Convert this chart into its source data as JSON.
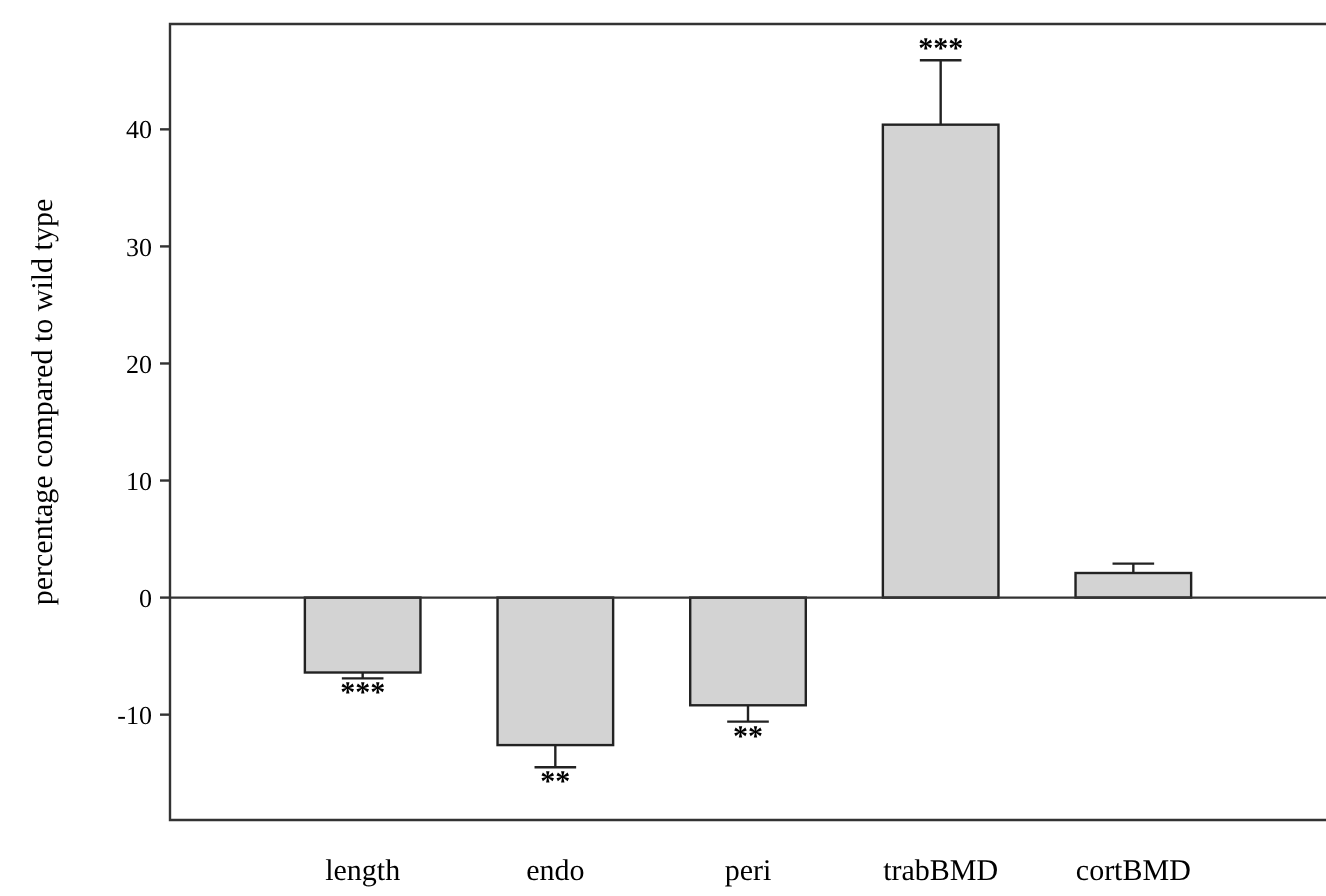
{
  "chart_data": {
    "type": "bar",
    "ylabel": "percentage compared to wild type",
    "categories": [
      "length",
      "endo",
      "peri",
      "trabBMD",
      "cortBMD"
    ],
    "values": [
      -6.4,
      -12.6,
      -9.2,
      40.4,
      2.1
    ],
    "errors": [
      [
        -6.9,
        -6.4
      ],
      [
        -14.5,
        -12.6
      ],
      [
        -10.6,
        -9.2
      ],
      [
        40.4,
        45.9
      ],
      [
        2.1,
        2.9
      ]
    ],
    "color": "#d3d3d3",
    "ylim": [
      -19,
      49
    ],
    "yticks": [
      -10,
      0,
      10,
      20,
      30,
      40
    ],
    "grid": false,
    "ref_lines": [
      {
        "axis": "y",
        "value": 0
      }
    ],
    "annotations": [
      {
        "text": "***",
        "x": "length",
        "y": -6.9
      },
      {
        "text": "**",
        "x": "endo",
        "y": -14.5
      },
      {
        "text": "**",
        "x": "peri",
        "y": -10.6
      },
      {
        "text": "***",
        "x": "trabBMD",
        "y": 45.9
      }
    ]
  }
}
